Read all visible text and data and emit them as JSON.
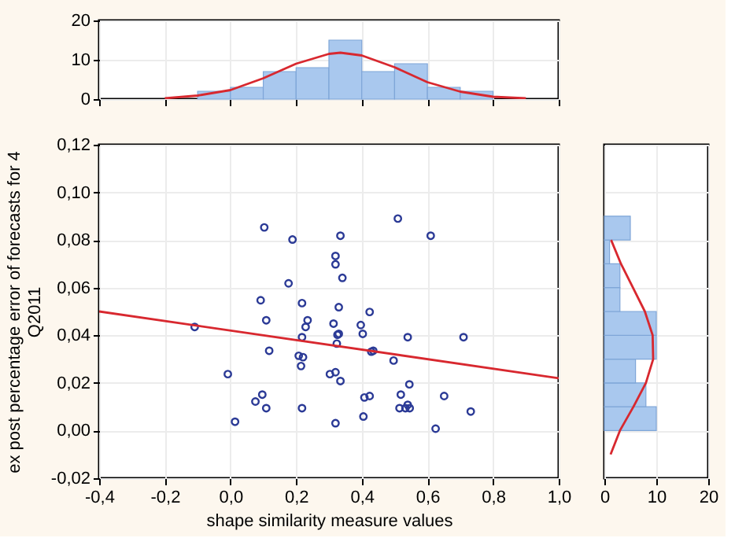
{
  "chart_data": [
    {
      "type": "histogram",
      "bins": [
        -0.1,
        0.0,
        0.1,
        0.2,
        0.3,
        0.4,
        0.5,
        0.6,
        0.7,
        0.8
      ],
      "values": [
        2,
        3,
        7,
        8,
        15,
        7,
        9,
        3,
        2
      ],
      "color": "#a9c8ee",
      "series": [
        {
          "type": "line",
          "color": "#d8282f",
          "x": [
            -0.2,
            -0.1,
            0.0,
            0.1,
            0.2,
            0.3,
            0.335,
            0.4,
            0.5,
            0.6,
            0.7,
            0.8,
            0.9
          ],
          "values": [
            0.2,
            0.9,
            2.3,
            5.3,
            9.0,
            11.5,
            11.8,
            11.1,
            8.1,
            4.3,
            1.9,
            0.6,
            0.2
          ]
        }
      ],
      "xlim": [
        -0.4,
        1.0
      ],
      "xticks": [
        {
          "value": -0.4,
          "label": null
        },
        {
          "value": -0.2,
          "label": null
        },
        {
          "value": 0.0,
          "label": null
        },
        {
          "value": 0.2,
          "label": null
        },
        {
          "value": 0.4,
          "label": null
        },
        {
          "value": 0.6,
          "label": null
        },
        {
          "value": 0.8,
          "label": null
        },
        {
          "value": 1.0,
          "label": null
        }
      ],
      "ylim": [
        0,
        20
      ],
      "yticks": [
        0,
        10,
        20
      ],
      "tick_labels": "y",
      "grid": true
    },
    {
      "type": "scatter",
      "xlabel": "shape similarity measure values",
      "ylabel": "ex post percentage error of forecasts for 4 Q2011",
      "series": [
        {
          "type": "scatter",
          "color": "#2b3a96",
          "x": [
            -0.109,
            0.103,
            0.189,
            0.335,
            0.32,
            0.32,
            0.341,
            0.177,
            0.092,
            0.218,
            0.33,
            0.109,
            0.235,
            0.229,
            0.314,
            0.218,
            0.326,
            0.33,
            0.324,
            0.118,
            0.208,
            0.221,
            0.215,
            -0.008,
            0.303,
            0.32,
            0.335,
            0.097,
            0.076,
            0.109,
            0.218,
            0.014,
            0.32,
            0.397,
            0.51,
            0.61,
            0.424,
            0.403,
            0.54,
            0.71,
            0.429,
            0.435,
            0.497,
            0.545,
            0.408,
            0.424,
            0.519,
            0.651,
            0.405,
            0.515,
            0.533,
            0.54,
            0.546,
            0.732,
            0.625
          ],
          "values": [
            0.0435,
            0.0853,
            0.0802,
            0.0818,
            0.0733,
            0.0698,
            0.0641,
            0.0618,
            0.0547,
            0.0535,
            0.0518,
            0.0463,
            0.0463,
            0.0435,
            0.0449,
            0.0392,
            0.0402,
            0.0406,
            0.0365,
            0.0335,
            0.0314,
            0.0308,
            0.0271,
            0.0237,
            0.0237,
            0.0245,
            0.0208,
            0.0151,
            0.0122,
            0.0094,
            0.0094,
            0.0037,
            0.0031,
            0.0443,
            0.089,
            0.0818,
            0.0498,
            0.0406,
            0.0392,
            0.0392,
            0.0331,
            0.0335,
            0.0294,
            0.0194,
            0.0139,
            0.0145,
            0.0151,
            0.0145,
            0.0059,
            0.0094,
            0.0094,
            0.0108,
            0.0094,
            0.008,
            0.0008
          ]
        },
        {
          "type": "line",
          "color": "#d8282f",
          "x": [
            -0.4,
            1.0
          ],
          "values": [
            0.05,
            0.022
          ]
        }
      ],
      "xlim": [
        -0.4,
        1.0
      ],
      "xticks": [
        {
          "value": -0.4,
          "label": "-0,4"
        },
        {
          "value": -0.2,
          "label": "-0,2"
        },
        {
          "value": 0.0,
          "label": "0,0"
        },
        {
          "value": 0.2,
          "label": "0,2"
        },
        {
          "value": 0.4,
          "label": "0,4"
        },
        {
          "value": 0.6,
          "label": "0,6"
        },
        {
          "value": 0.8,
          "label": "0,8"
        },
        {
          "value": 1.0,
          "label": "1,0"
        }
      ],
      "ylim": [
        -0.02,
        0.12
      ],
      "yticks": [
        {
          "value": -0.02,
          "label": "-0,02"
        },
        {
          "value": 0.0,
          "label": "0,00"
        },
        {
          "value": 0.02,
          "label": "0,02"
        },
        {
          "value": 0.04,
          "label": "0,04"
        },
        {
          "value": 0.06,
          "label": "0,06"
        },
        {
          "value": 0.08,
          "label": "0,08"
        },
        {
          "value": 0.1,
          "label": "0,10"
        },
        {
          "value": 0.12,
          "label": "0,12"
        }
      ],
      "grid": true
    },
    {
      "type": "histogram",
      "orientation": "horizontal",
      "bins": [
        0.0,
        0.01,
        0.02,
        0.03,
        0.04,
        0.05,
        0.06,
        0.07,
        0.08,
        0.09
      ],
      "values": [
        10,
        8,
        6,
        10,
        10,
        3,
        3,
        1,
        5
      ],
      "color": "#a9c8ee",
      "series": [
        {
          "type": "line",
          "color": "#d8282f",
          "x": [
            -0.01,
            0.0,
            0.01,
            0.02,
            0.03,
            0.04,
            0.05,
            0.06,
            0.07,
            0.08
          ],
          "values": [
            1.2,
            3.0,
            5.6,
            8.0,
            9.4,
            9.3,
            7.8,
            5.5,
            3.2,
            1.3
          ]
        }
      ],
      "xlim": [
        0,
        20
      ],
      "xticks": [
        0,
        10,
        20
      ],
      "ylim": [
        -0.02,
        0.12
      ],
      "yticks": [
        {
          "value": -0.02,
          "label": null
        },
        {
          "value": 0.0,
          "label": null
        },
        {
          "value": 0.02,
          "label": null
        },
        {
          "value": 0.04,
          "label": null
        },
        {
          "value": 0.06,
          "label": null
        },
        {
          "value": 0.08,
          "label": null
        },
        {
          "value": 0.1,
          "label": null
        },
        {
          "value": 0.12,
          "label": null
        }
      ],
      "tick_labels": "x",
      "grid": true
    }
  ]
}
